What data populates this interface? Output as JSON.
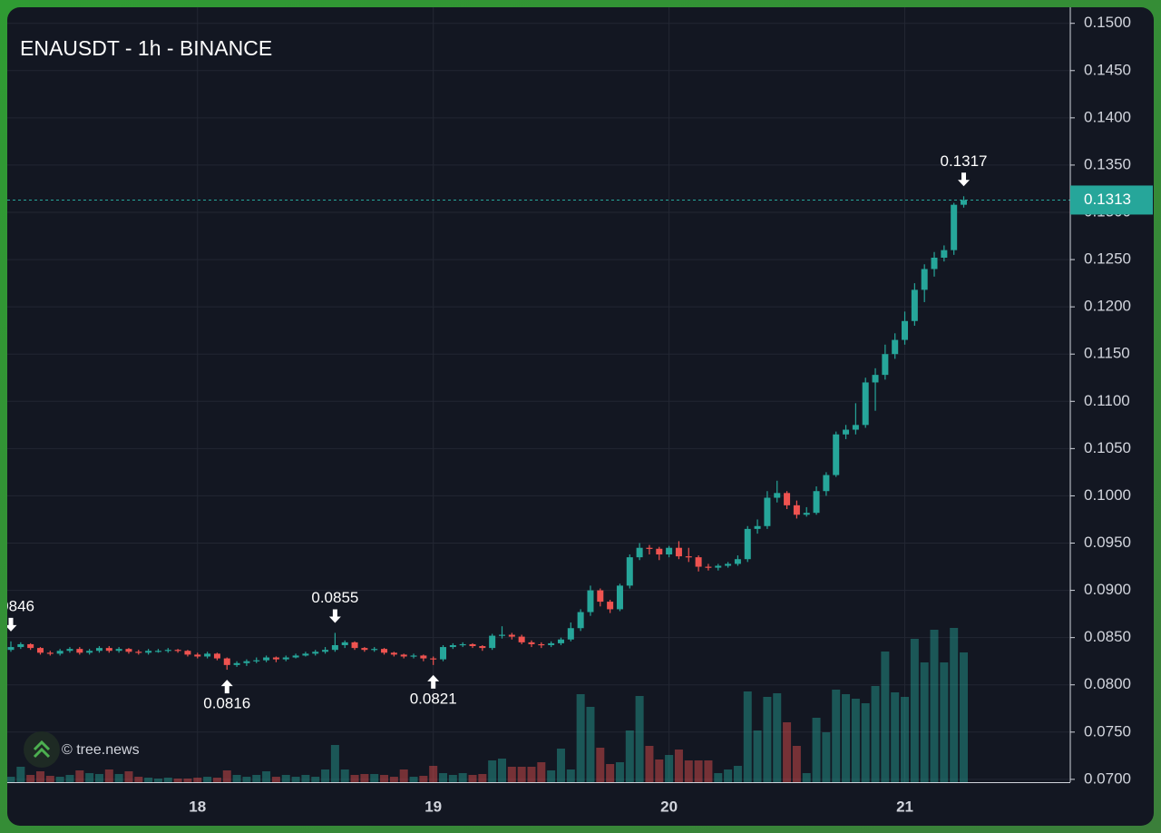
{
  "chart_data": {
    "type": "candlestick",
    "title": "ENAUSDT - 1h - BINANCE",
    "watermark": "© tree.news",
    "categories": [
      null,
      null,
      null,
      null,
      null,
      null,
      null,
      null,
      null,
      null,
      null,
      null,
      null,
      null,
      null,
      null,
      null,
      null,
      null,
      "18",
      null,
      null,
      null,
      null,
      null,
      null,
      null,
      null,
      null,
      null,
      null,
      null,
      null,
      null,
      null,
      null,
      null,
      null,
      null,
      null,
      null,
      null,
      null,
      "19",
      null,
      null,
      null,
      null,
      null,
      null,
      null,
      null,
      null,
      null,
      null,
      null,
      null,
      null,
      null,
      null,
      null,
      null,
      null,
      null,
      null,
      null,
      null,
      "20",
      null,
      null,
      null,
      null,
      null,
      null,
      null,
      null,
      null,
      null,
      null,
      null,
      null,
      null,
      null,
      null,
      null,
      null,
      null,
      null,
      null,
      null,
      null,
      "21",
      null,
      null,
      null,
      null,
      null,
      null
    ],
    "open": [
      0.0837,
      0.084,
      0.0843,
      0.0839,
      0.0834,
      0.0833,
      0.0836,
      0.0838,
      0.0834,
      0.0836,
      0.0839,
      0.0836,
      0.0838,
      0.0835,
      0.0834,
      0.0836,
      0.0836,
      0.0837,
      0.0836,
      0.0832,
      0.083,
      0.0833,
      0.0828,
      0.0821,
      0.0823,
      0.0825,
      0.0826,
      0.0829,
      0.0827,
      0.0829,
      0.0831,
      0.0833,
      0.0835,
      0.0837,
      0.0842,
      0.0845,
      0.0839,
      0.0837,
      0.0838,
      0.0834,
      0.0832,
      0.083,
      0.0831,
      0.0828,
      0.0827,
      0.084,
      0.0842,
      0.0843,
      0.0841,
      0.0839,
      0.0852,
      0.0853,
      0.0851,
      0.0845,
      0.0843,
      0.0842,
      0.0844,
      0.0848,
      0.086,
      0.0877,
      0.09,
      0.0888,
      0.088,
      0.0905,
      0.0935,
      0.0945,
      0.0944,
      0.0938,
      0.0945,
      0.0936,
      0.0935,
      0.0925,
      0.0924,
      0.0926,
      0.0928,
      0.0933,
      0.0965,
      0.0968,
      0.0998,
      0.1003,
      0.099,
      0.098,
      0.0982,
      0.1005,
      0.1022,
      0.1065,
      0.107,
      0.1075,
      0.112,
      0.1128,
      0.115,
      0.1165,
      0.1185,
      0.1218,
      0.124,
      0.1252,
      0.126,
      0.1308
    ],
    "high": [
      0.0846,
      0.0845,
      0.0844,
      0.084,
      0.0836,
      0.0838,
      0.084,
      0.084,
      0.0838,
      0.0841,
      0.0841,
      0.084,
      0.0839,
      0.0837,
      0.0838,
      0.0838,
      0.0839,
      0.0838,
      0.0837,
      0.0834,
      0.0835,
      0.0834,
      0.0829,
      0.0825,
      0.0827,
      0.0829,
      0.0831,
      0.083,
      0.0831,
      0.0833,
      0.0835,
      0.0837,
      0.084,
      0.0855,
      0.0847,
      0.0846,
      0.084,
      0.084,
      0.0839,
      0.0835,
      0.0833,
      0.0833,
      0.0832,
      0.083,
      0.0842,
      0.0844,
      0.0845,
      0.0844,
      0.0842,
      0.0854,
      0.0862,
      0.0855,
      0.0853,
      0.0847,
      0.0845,
      0.0846,
      0.085,
      0.0866,
      0.088,
      0.0905,
      0.0902,
      0.089,
      0.0907,
      0.0938,
      0.095,
      0.0948,
      0.0946,
      0.0947,
      0.0952,
      0.0945,
      0.0937,
      0.0928,
      0.0928,
      0.093,
      0.0937,
      0.0968,
      0.0975,
      0.1005,
      0.1016,
      0.1005,
      0.0995,
      0.0988,
      0.101,
      0.1025,
      0.1068,
      0.1075,
      0.1098,
      0.1125,
      0.1135,
      0.116,
      0.1172,
      0.1195,
      0.1225,
      0.1245,
      0.1258,
      0.1265,
      0.131,
      0.1317
    ],
    "low": [
      0.0835,
      0.0838,
      0.0837,
      0.0832,
      0.0831,
      0.0831,
      0.0834,
      0.0832,
      0.0832,
      0.0834,
      0.0834,
      0.0834,
      0.0833,
      0.0832,
      0.0832,
      0.0834,
      0.0834,
      0.0834,
      0.083,
      0.0828,
      0.0828,
      0.0826,
      0.0816,
      0.0819,
      0.082,
      0.0823,
      0.0824,
      0.0824,
      0.0825,
      0.0828,
      0.083,
      0.0831,
      0.0833,
      0.0835,
      0.0839,
      0.0837,
      0.0835,
      0.0835,
      0.0832,
      0.083,
      0.0828,
      0.0828,
      0.0825,
      0.0821,
      0.0825,
      0.0838,
      0.084,
      0.0839,
      0.0836,
      0.0837,
      0.0849,
      0.0848,
      0.0843,
      0.084,
      0.0839,
      0.084,
      0.0842,
      0.0846,
      0.0857,
      0.0873,
      0.0883,
      0.0876,
      0.0878,
      0.0902,
      0.0932,
      0.0938,
      0.0932,
      0.0935,
      0.0933,
      0.093,
      0.092,
      0.0921,
      0.0921,
      0.0924,
      0.0926,
      0.093,
      0.096,
      0.0965,
      0.0993,
      0.0986,
      0.0976,
      0.0978,
      0.098,
      0.1,
      0.102,
      0.106,
      0.1065,
      0.1072,
      0.109,
      0.1123,
      0.1145,
      0.116,
      0.118,
      0.1205,
      0.1232,
      0.1248,
      0.1255,
      0.1305
    ],
    "close": [
      0.084,
      0.0843,
      0.0839,
      0.0834,
      0.0833,
      0.0836,
      0.0838,
      0.0834,
      0.0836,
      0.0839,
      0.0836,
      0.0838,
      0.0835,
      0.0834,
      0.0836,
      0.0836,
      0.0837,
      0.0836,
      0.0832,
      0.083,
      0.0833,
      0.0828,
      0.0821,
      0.0823,
      0.0825,
      0.0826,
      0.0829,
      0.0827,
      0.0829,
      0.0831,
      0.0833,
      0.0835,
      0.0837,
      0.0842,
      0.0845,
      0.0839,
      0.0837,
      0.0838,
      0.0834,
      0.0832,
      0.083,
      0.0831,
      0.0828,
      0.0827,
      0.084,
      0.0842,
      0.0843,
      0.0841,
      0.0839,
      0.0852,
      0.0853,
      0.0851,
      0.0845,
      0.0843,
      0.0842,
      0.0844,
      0.0848,
      0.086,
      0.0877,
      0.09,
      0.0888,
      0.088,
      0.0905,
      0.0935,
      0.0945,
      0.0944,
      0.0938,
      0.0945,
      0.0936,
      0.0935,
      0.0925,
      0.0924,
      0.0926,
      0.0928,
      0.0933,
      0.0965,
      0.0968,
      0.0998,
      0.1003,
      0.099,
      0.098,
      0.0982,
      0.1005,
      0.1022,
      0.1065,
      0.107,
      0.1075,
      0.112,
      0.1128,
      0.115,
      0.1165,
      0.1185,
      0.1218,
      0.124,
      0.1252,
      0.126,
      0.1308,
      0.1313
    ],
    "volume": [
      6,
      17,
      8,
      12,
      7,
      6,
      8,
      13,
      10,
      9,
      14,
      9,
      12,
      6,
      5,
      4,
      5,
      4,
      4,
      5,
      6,
      5,
      13,
      8,
      6,
      8,
      12,
      6,
      8,
      6,
      8,
      6,
      14,
      41,
      14,
      8,
      9,
      9,
      8,
      6,
      14,
      6,
      7,
      18,
      10,
      8,
      10,
      8,
      9,
      24,
      26,
      17,
      17,
      17,
      22,
      13,
      37,
      14,
      97,
      83,
      38,
      20,
      22,
      57,
      95,
      40,
      25,
      30,
      36,
      24,
      24,
      24,
      10,
      14,
      18,
      100,
      57,
      94,
      98,
      66,
      40,
      10,
      71,
      55,
      102,
      97,
      92,
      87,
      106,
      144,
      99,
      94,
      158,
      132,
      168,
      132,
      170,
      143
    ],
    "up_color": "#26a69a",
    "down_color": "#ef5350",
    "ylim": [
      0.0697,
      0.1517
    ],
    "yticks": [
      {
        "value": 0.07,
        "label": "0.0700"
      },
      {
        "value": 0.075,
        "label": "0.0750"
      },
      {
        "value": 0.08,
        "label": "0.0800"
      },
      {
        "value": 0.085,
        "label": "0.0850"
      },
      {
        "value": 0.09,
        "label": "0.0900"
      },
      {
        "value": 0.095,
        "label": "0.0950"
      },
      {
        "value": 0.1,
        "label": "0.1000"
      },
      {
        "value": 0.105,
        "label": "0.1050"
      },
      {
        "value": 0.11,
        "label": "0.1100"
      },
      {
        "value": 0.115,
        "label": "0.1150"
      },
      {
        "value": 0.12,
        "label": "0.1200"
      },
      {
        "value": 0.125,
        "label": "0.1250"
      },
      {
        "value": 0.13,
        "label": "0.1300"
      },
      {
        "value": 0.135,
        "label": "0.1350"
      },
      {
        "value": 0.14,
        "label": "0.1400"
      },
      {
        "value": 0.145,
        "label": "0.1450"
      },
      {
        "value": 0.15,
        "label": "0.1500"
      }
    ],
    "grid": true
  }
}
